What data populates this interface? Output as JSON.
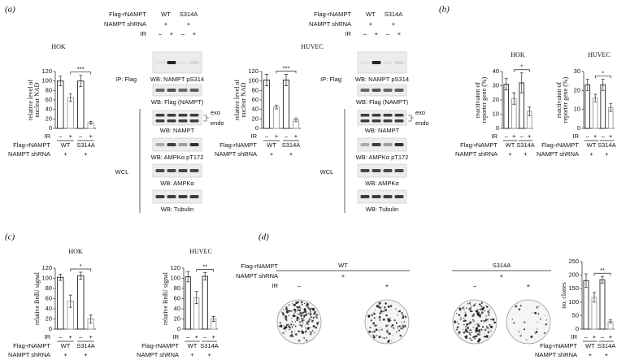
{
  "panel_labels": [
    "(a)",
    "(b)",
    "(c)",
    "(d)"
  ],
  "chart_data": [
    {
      "type": "bar",
      "ylabel": [
        "relative level of",
        "nuclear NAD"
      ],
      "categories": [
        "–",
        "+",
        "–",
        "+"
      ],
      "values": [
        100,
        65,
        100,
        12
      ],
      "errors": [
        10,
        8,
        12,
        3
      ],
      "ylim": [
        0,
        120
      ],
      "yticks": [
        0,
        20,
        40,
        60,
        80,
        100,
        120
      ],
      "color": "#ffffff",
      "edge_colors": [
        "#222222",
        "#999999",
        "#222222",
        "#999999"
      ],
      "significance": "***",
      "row_labels": [
        "IR",
        "Flag-rNAMPT",
        "NAMPT shRNA"
      ],
      "groups": [
        "WT",
        "S314A"
      ],
      "group_values": [
        "+",
        "+"
      ]
    },
    {
      "type": "bar",
      "ylabel": [
        "relative level of",
        "nuclear NAD"
      ],
      "categories": [
        "–",
        "+",
        "–",
        "+"
      ],
      "values": [
        102,
        45,
        102,
        18
      ],
      "errors": [
        12,
        4,
        12,
        4
      ],
      "ylim": [
        0,
        120
      ],
      "yticks": [
        0,
        20,
        40,
        60,
        80,
        100,
        120
      ],
      "color": "#ffffff",
      "edge_colors": [
        "#222222",
        "#999999",
        "#222222",
        "#999999"
      ],
      "significance": "***",
      "row_labels": [
        "IR",
        "Flag-rNAMPT",
        "NAMPT shRNA"
      ],
      "groups": [
        "WT",
        "S314A"
      ],
      "group_values": [
        "+",
        "+"
      ]
    },
    {
      "type": "bar",
      "title": "HOK",
      "ylabel": [
        "reactivaion of",
        "reporter gene (%)"
      ],
      "categories": [
        "–",
        "+",
        "–",
        "+"
      ],
      "values": [
        31,
        21,
        32,
        12
      ],
      "errors": [
        4,
        4,
        7,
        3
      ],
      "ylim": [
        0,
        40
      ],
      "yticks": [
        0,
        10,
        20,
        30,
        40
      ],
      "color": "#ffffff",
      "edge_colors": [
        "#222222",
        "#999999",
        "#222222",
        "#999999"
      ],
      "significance": "*",
      "row_labels": [
        "IR",
        "Flag-rNAMPT",
        "NAMPT shRNA"
      ],
      "groups": [
        "WT",
        "S314A"
      ],
      "group_values": [
        "+",
        "+"
      ]
    },
    {
      "type": "bar",
      "title": "HUVEC",
      "ylabel": [
        "reactivaion of",
        "reporter gene (%)"
      ],
      "categories": [
        "–",
        "+",
        "–",
        "+"
      ],
      "values": [
        23,
        16,
        23,
        11
      ],
      "errors": [
        3,
        2,
        3,
        2
      ],
      "ylim": [
        0,
        30
      ],
      "yticks": [
        0,
        10,
        20,
        30
      ],
      "color": "#ffffff",
      "edge_colors": [
        "#222222",
        "#999999",
        "#222222",
        "#999999"
      ],
      "significance": "*",
      "row_labels": [
        "IR",
        "Flag-rNAMPT",
        "NAMPT shRNA"
      ],
      "groups": [
        "WT",
        "S314A"
      ],
      "group_values": [
        "+",
        "+"
      ]
    },
    {
      "type": "bar",
      "title": "HOK",
      "ylabel": [
        "relative BrdU signal"
      ],
      "categories": [
        "–",
        "+",
        "–",
        "+"
      ],
      "values": [
        102,
        55,
        105,
        20
      ],
      "errors": [
        6,
        12,
        7,
        8
      ],
      "ylim": [
        0,
        120
      ],
      "yticks": [
        0,
        20,
        40,
        60,
        80,
        100,
        120
      ],
      "color": "#ffffff",
      "edge_colors": [
        "#222222",
        "#999999",
        "#222222",
        "#999999"
      ],
      "significance": "*",
      "row_labels": [
        "IR",
        "Flag-rNAMPT",
        "NAMPT shRNA"
      ],
      "groups": [
        "WT",
        "S314A"
      ],
      "group_values": [
        "+",
        "+"
      ]
    },
    {
      "type": "bar",
      "title": "HUVEC",
      "ylabel": [
        "relative BrdU signal"
      ],
      "categories": [
        "–",
        "+",
        "–",
        "+"
      ],
      "values": [
        103,
        62,
        104,
        20
      ],
      "errors": [
        10,
        12,
        7,
        5
      ],
      "ylim": [
        0,
        120
      ],
      "yticks": [
        0,
        20,
        40,
        60,
        80,
        100,
        120
      ],
      "color": "#ffffff",
      "edge_colors": [
        "#222222",
        "#999999",
        "#222222",
        "#999999"
      ],
      "significance": "**",
      "row_labels": [
        "IR",
        "Flag-rNAMPT",
        "NAMPT shRNA"
      ],
      "groups": [
        "WT",
        "S314A"
      ],
      "group_values": [
        "+",
        "+"
      ]
    },
    {
      "type": "bar",
      "ylabel": [
        "no. clones"
      ],
      "categories": [
        "–",
        "+",
        "–",
        "+"
      ],
      "values": [
        180,
        118,
        183,
        28
      ],
      "errors": [
        25,
        18,
        12,
        6
      ],
      "ylim": [
        0,
        250
      ],
      "yticks": [
        0,
        50,
        100,
        150,
        200,
        250
      ],
      "color": "#ffffff",
      "edge_colors": [
        "#222222",
        "#999999",
        "#222222",
        "#999999"
      ],
      "significance": "**",
      "row_labels": [
        "IR",
        "Flag-rNAMPT",
        "NAMPT shRNA"
      ],
      "groups": [
        "WT",
        "S314A"
      ],
      "group_values": [
        "+",
        "+"
      ]
    }
  ],
  "blots": [
    {
      "title": "HOK",
      "row_labels": [
        "Flag-rNAMPT",
        "NAMPT shRNA",
        "IR"
      ],
      "groups": [
        "WT",
        "S314A"
      ],
      "group_values": [
        "+",
        "+"
      ],
      "lanes": [
        "–",
        "+",
        "–",
        "+"
      ],
      "ip": "IP: Flag",
      "wcl": "WCL",
      "panels": [
        "WB: NAMPT pS314",
        "WB: Flag (NAMPT)",
        "WB: NAMPT",
        "WB: AMPKα pT172",
        "WB: AMPKα",
        "WB: Tubulin"
      ],
      "exo": "exo",
      "endo": "endo"
    },
    {
      "title": "HUVEC",
      "row_labels": [
        "Flag-rNAMPT",
        "NAMPT shRNA",
        "IR"
      ],
      "groups": [
        "WT",
        "S314A"
      ],
      "group_values": [
        "+",
        "+"
      ],
      "lanes": [
        "–",
        "+",
        "–",
        "+"
      ],
      "ip": "IP: Flag",
      "wcl": "WCL",
      "panels": [
        "WB: NAMPT pS314",
        "WB: Flag (NAMPT)",
        "WB: NAMPT",
        "WB: AMPKα pT172",
        "WB: AMPKα",
        "WB: Tubulin"
      ],
      "exo": "exo",
      "endo": "endo"
    }
  ],
  "plates": {
    "row_labels": [
      "Flag-rNAMPT",
      "NAMPT shRNA",
      "IR"
    ],
    "groups": [
      "WT",
      "S314A"
    ],
    "group_values": [
      "+",
      "+"
    ],
    "lanes": [
      "–",
      "+",
      "–",
      "+"
    ]
  }
}
